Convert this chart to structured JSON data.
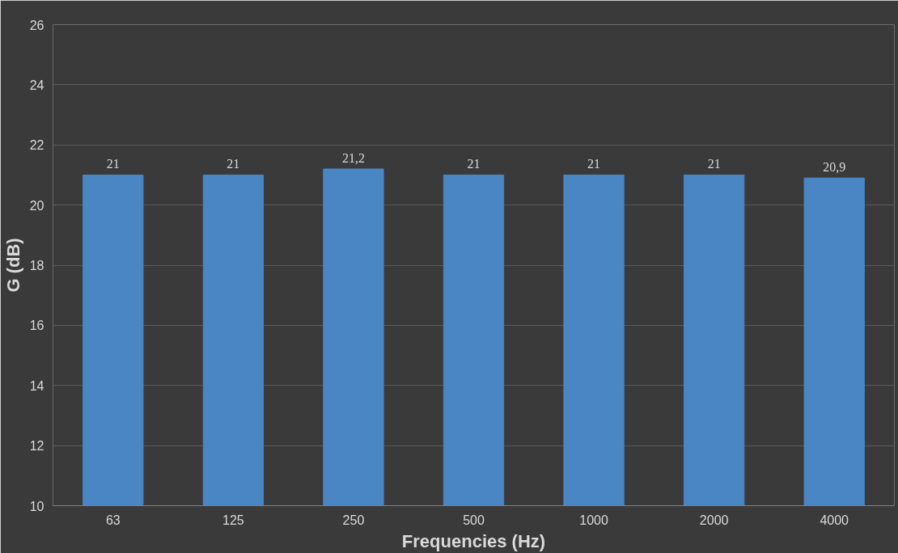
{
  "chart_data": {
    "type": "bar",
    "xlabel": "Frequencies (Hz)",
    "ylabel": "G (dB)",
    "categories": [
      "63",
      "125",
      "250",
      "500",
      "1000",
      "2000",
      "4000"
    ],
    "values": [
      21,
      21,
      21.2,
      21,
      21,
      21,
      20.9
    ],
    "value_labels": [
      "21",
      "21",
      "21,2",
      "21",
      "21",
      "21",
      "20,9"
    ],
    "color": "#4a86c4",
    "ylim": [
      10,
      26
    ],
    "yticks": [
      10,
      12,
      14,
      16,
      18,
      20,
      22,
      24,
      26
    ],
    "grid": "y"
  }
}
